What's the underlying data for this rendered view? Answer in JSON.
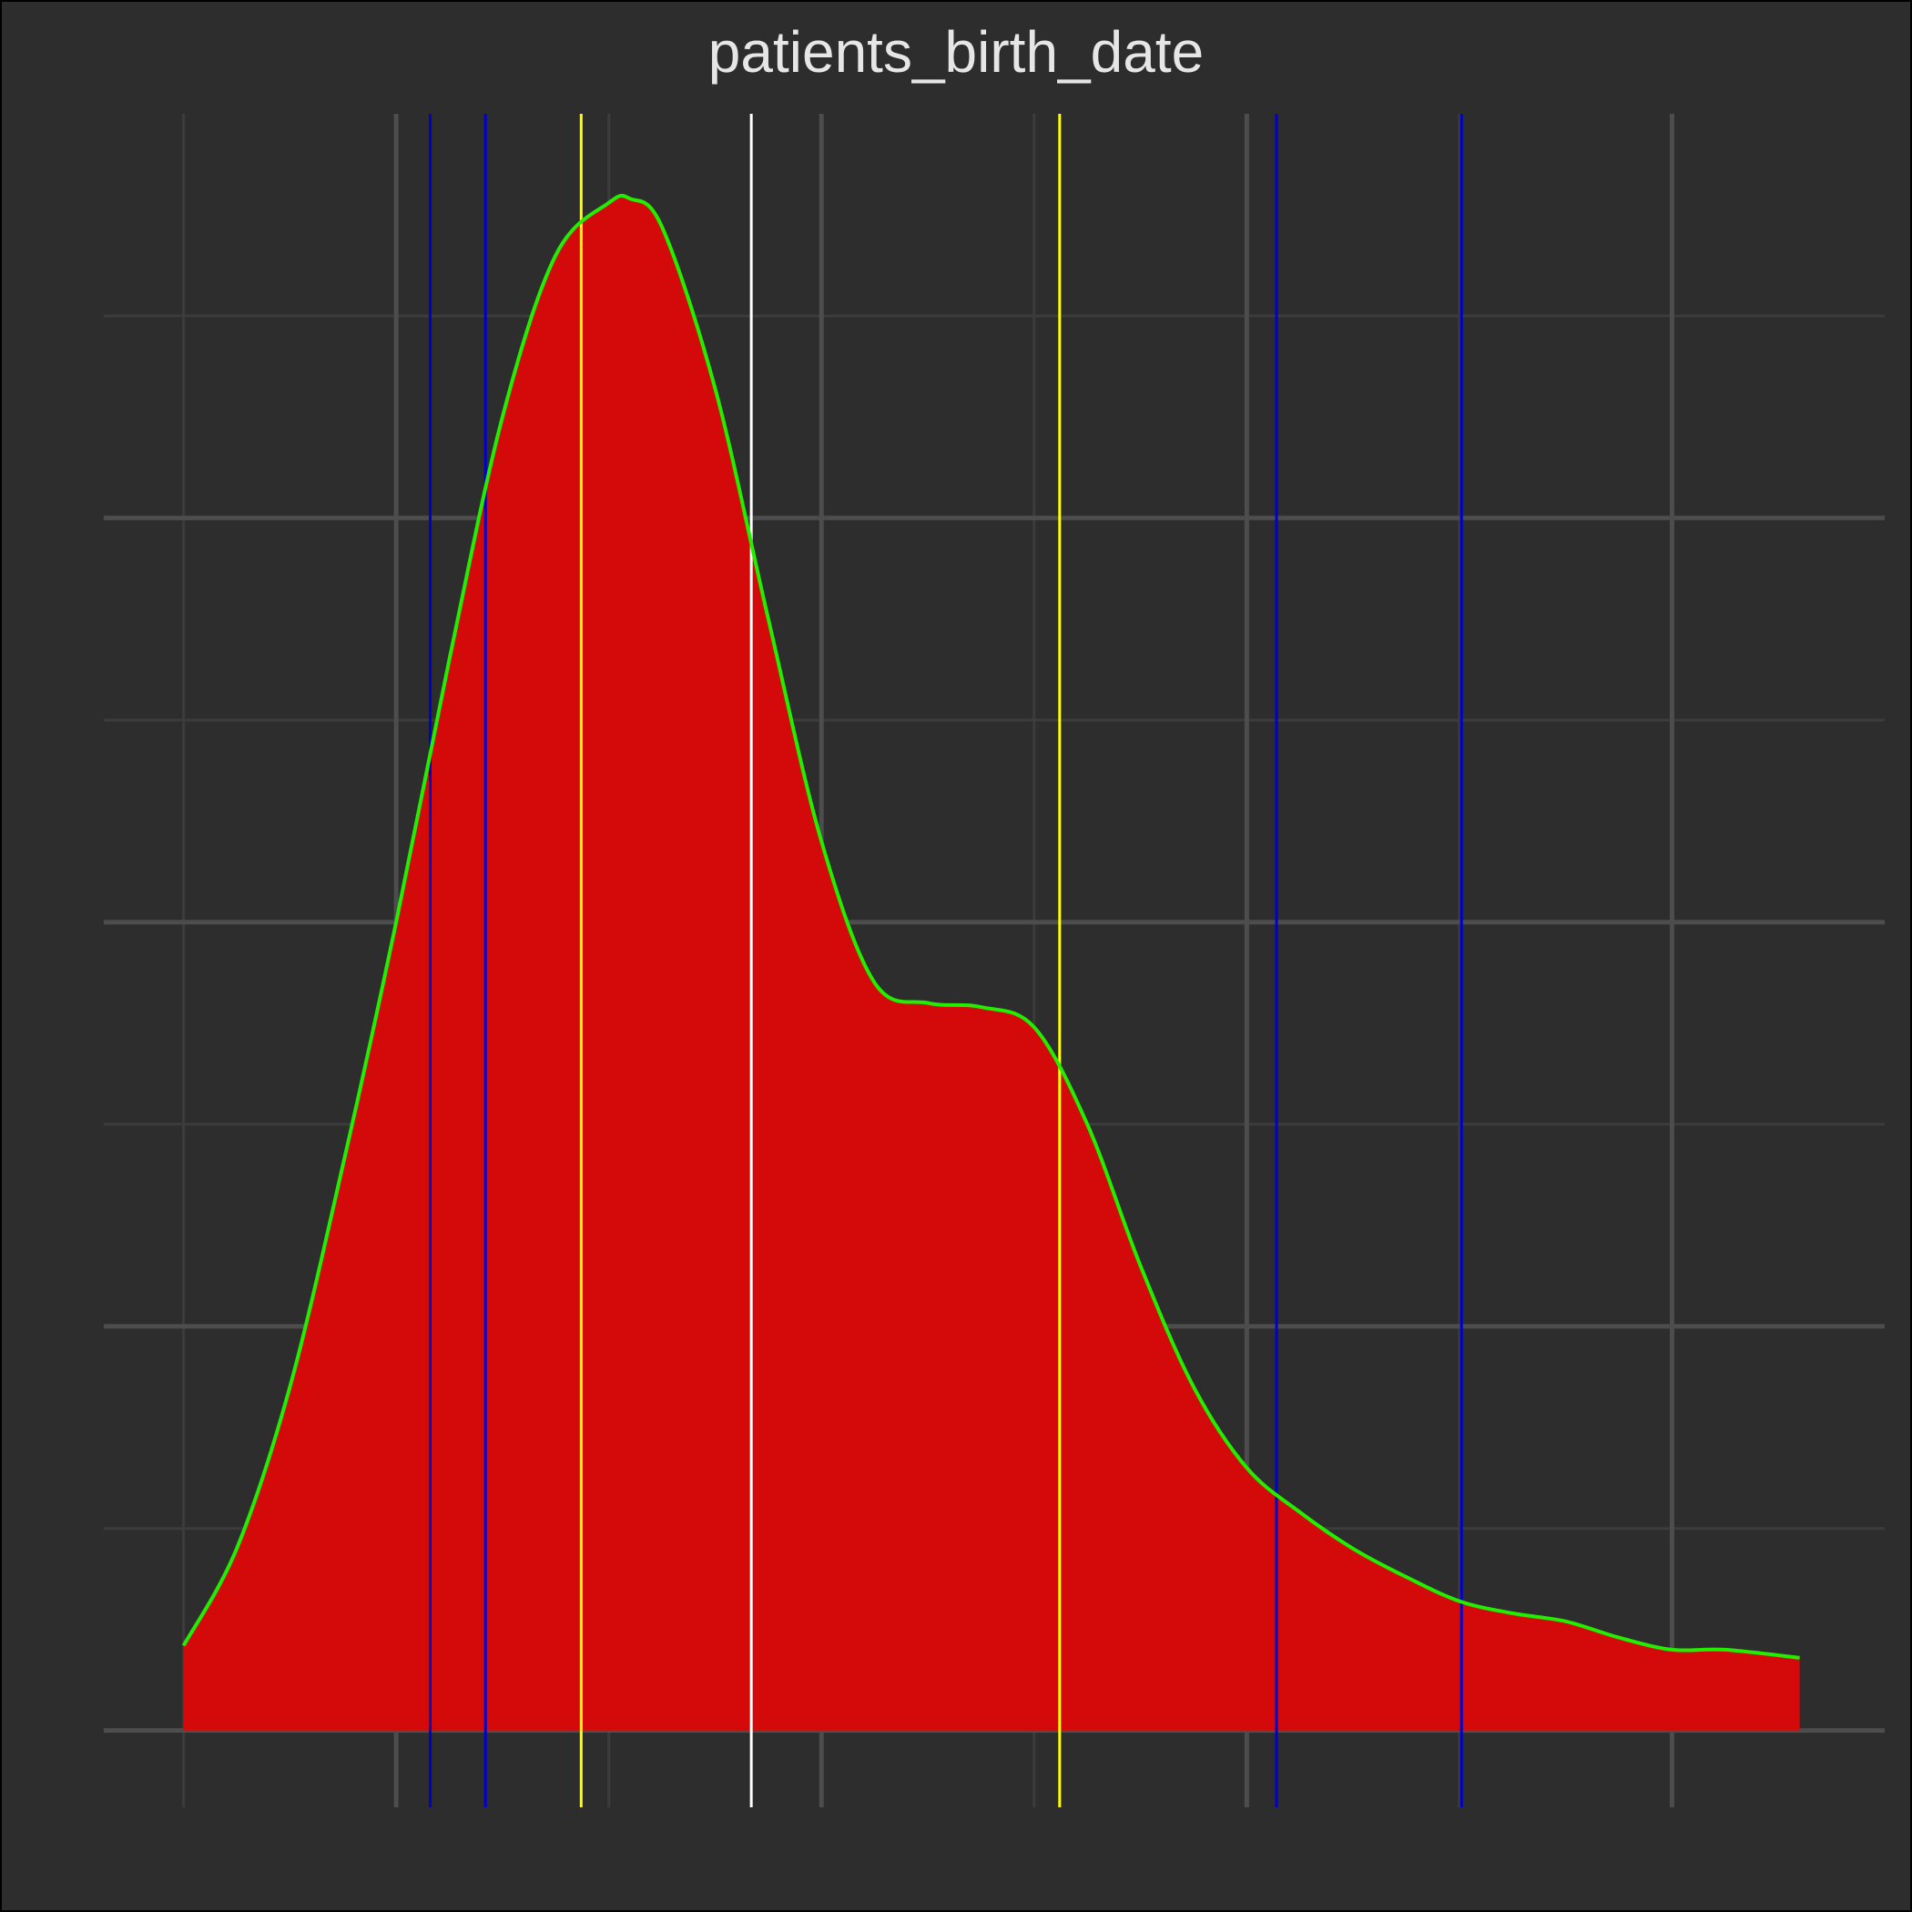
{
  "chart_data": {
    "type": "area",
    "title": "patients_birth_date",
    "xlabel": "",
    "ylabel": "",
    "xlim": [
      -0.375,
      8.0
    ],
    "ylim": [
      -0.19,
      4.0
    ],
    "x_gridlines_major": [
      1,
      3,
      5,
      7
    ],
    "x_gridlines_minor": [
      0,
      2,
      4,
      6
    ],
    "y_gridlines_major": [
      0,
      1,
      2,
      3
    ],
    "y_gridlines_minor": [
      0.5,
      1.5,
      2.5,
      3.5
    ],
    "grid": true,
    "series": [
      {
        "kind": "density",
        "x": [
          0,
          0.25,
          0.5,
          0.75,
          1.0,
          1.25,
          1.5,
          1.75,
          2.0,
          2.1,
          2.25,
          2.5,
          2.75,
          3.0,
          3.25,
          3.5,
          3.75,
          4.0,
          4.25,
          4.5,
          4.75,
          5.0,
          5.25,
          5.5,
          5.75,
          6.0,
          6.25,
          6.5,
          6.75,
          7.0,
          7.25,
          7.6
        ],
        "y": [
          0.21,
          0.45,
          0.85,
          1.4,
          2.0,
          2.65,
          3.25,
          3.65,
          3.78,
          3.79,
          3.72,
          3.32,
          2.75,
          2.2,
          1.85,
          1.8,
          1.79,
          1.74,
          1.5,
          1.15,
          0.85,
          0.65,
          0.54,
          0.45,
          0.38,
          0.32,
          0.29,
          0.27,
          0.23,
          0.2,
          0.2,
          0.18
        ]
      }
    ],
    "vlines": [
      {
        "x": 1.16,
        "color": "#0000cc"
      },
      {
        "x": 1.42,
        "color": "#0000cc"
      },
      {
        "x": 1.87,
        "color": "#ffff00"
      },
      {
        "x": 2.67,
        "color": "#ffffff"
      },
      {
        "x": 4.12,
        "color": "#ffff00"
      },
      {
        "x": 5.14,
        "color": "#0000cc"
      },
      {
        "x": 6.01,
        "color": "#0000cc"
      }
    ],
    "colors": {
      "background": "#2d2d2d",
      "fill": "#d40a0a",
      "curve": "#22ee00",
      "grid_major": "#4d4d4d",
      "grid_minor": "#3c3c3c"
    }
  }
}
